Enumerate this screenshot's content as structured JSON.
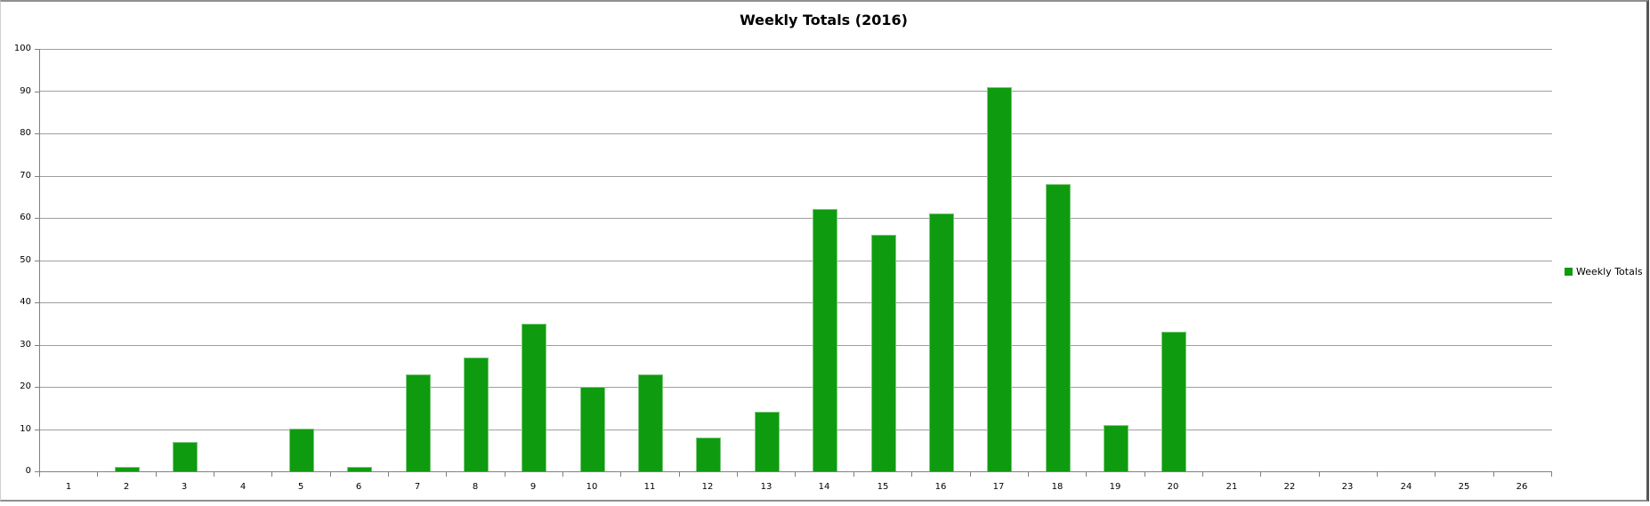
{
  "window": {
    "title": "Weekly Totals (2016)"
  },
  "chart_data": {
    "type": "bar",
    "title": "Weekly Totals (2016)",
    "categories": [
      "1",
      "2",
      "3",
      "4",
      "5",
      "6",
      "7",
      "8",
      "9",
      "10",
      "11",
      "12",
      "13",
      "14",
      "15",
      "16",
      "17",
      "18",
      "19",
      "20",
      "21",
      "22",
      "23",
      "24",
      "25",
      "26"
    ],
    "series": [
      {
        "name": "Weekly Totals",
        "values": [
          0,
          1,
          7,
          0,
          10,
          1,
          23,
          27,
          35,
          20,
          23,
          8,
          14,
          62,
          56,
          61,
          91,
          68,
          11,
          33,
          0,
          0,
          0,
          0,
          0,
          0
        ]
      }
    ],
    "xlabel": "",
    "ylabel": "",
    "ylim": [
      0,
      100
    ],
    "yticks": [
      0,
      10,
      20,
      30,
      40,
      50,
      60,
      70,
      80,
      90,
      100
    ],
    "grid": true,
    "legend": {
      "position": "right",
      "entries": [
        {
          "label": "Weekly Totals",
          "color": "#0f9b0f"
        }
      ]
    }
  },
  "colors": {
    "bar": "#0f9b0f",
    "bar_edge": "#7cc97c",
    "gridline": "#9f9f9f",
    "axis": "#808080",
    "text": "#000000"
  }
}
